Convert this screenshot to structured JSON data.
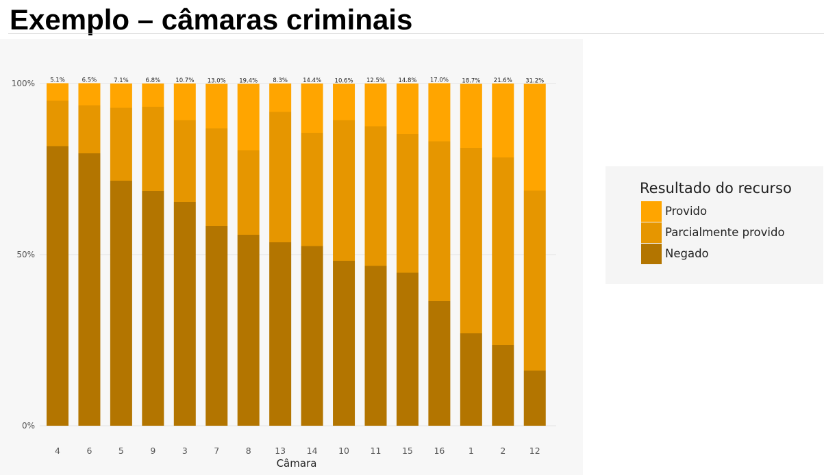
{
  "page": {
    "title": "Exemplo – câmaras criminais"
  },
  "chart_data": {
    "type": "bar",
    "stacked": true,
    "percent": true,
    "xlabel": "Câmara",
    "ylabel": "",
    "ylim": [
      0,
      100
    ],
    "yticks": [
      "0%",
      "50%",
      "100%"
    ],
    "categories": [
      "4",
      "6",
      "5",
      "9",
      "3",
      "7",
      "8",
      "13",
      "14",
      "10",
      "11",
      "15",
      "16",
      "1",
      "2",
      "12"
    ],
    "series": [
      {
        "name": "Negado",
        "color": "#b37500",
        "values": [
          81.7,
          79.6,
          71.6,
          68.6,
          65.4,
          58.4,
          55.8,
          53.6,
          52.5,
          48.2,
          46.7,
          44.7,
          36.4,
          27.0,
          23.6,
          16.1
        ],
        "labels": [
          "81.7%",
          "79.6%",
          "71.6%",
          "68.6%",
          "65.4%",
          "58.4%",
          "55.8%",
          "53.6%",
          "52.5%",
          "48.2%",
          "46.7%",
          "44.7%",
          "36.4%",
          "27.0%",
          "23.6%",
          "16.1%"
        ]
      },
      {
        "name": "Parcialmente provido",
        "color": "#e69600",
        "values": [
          13.3,
          14.0,
          21.3,
          24.6,
          23.9,
          28.5,
          24.7,
          38.1,
          33.1,
          41.1,
          40.8,
          40.5,
          46.7,
          54.2,
          54.8,
          52.6
        ],
        "labels": [
          "13.3%",
          "14.0%",
          "21.3%",
          "24.6%",
          "23.9%",
          "28.5%",
          "24.7%",
          "38.1%",
          "33.1%",
          "41.1%",
          "40.8%",
          "40.5%",
          "46.7%",
          "54.2%",
          "54.8%",
          "52.6%"
        ]
      },
      {
        "name": "Provido",
        "color": "#ffa500",
        "values": [
          5.1,
          6.5,
          7.1,
          6.8,
          10.7,
          13.0,
          19.4,
          8.3,
          14.4,
          10.6,
          12.5,
          14.8,
          17.0,
          18.7,
          21.6,
          31.2
        ],
        "labels": [
          "5.1%",
          "6.5%",
          "7.1%",
          "6.8%",
          "10.7%",
          "13.0%",
          "19.4%",
          "8.3%",
          "14.4%",
          "10.6%",
          "12.5%",
          "14.8%",
          "17.0%",
          "18.7%",
          "21.6%",
          "31.2%"
        ]
      }
    ],
    "legend": {
      "title": "Resultado do recurso",
      "position": "right",
      "items": [
        "Provido",
        "Parcialmente provido",
        "Negado"
      ]
    },
    "grid": true
  }
}
